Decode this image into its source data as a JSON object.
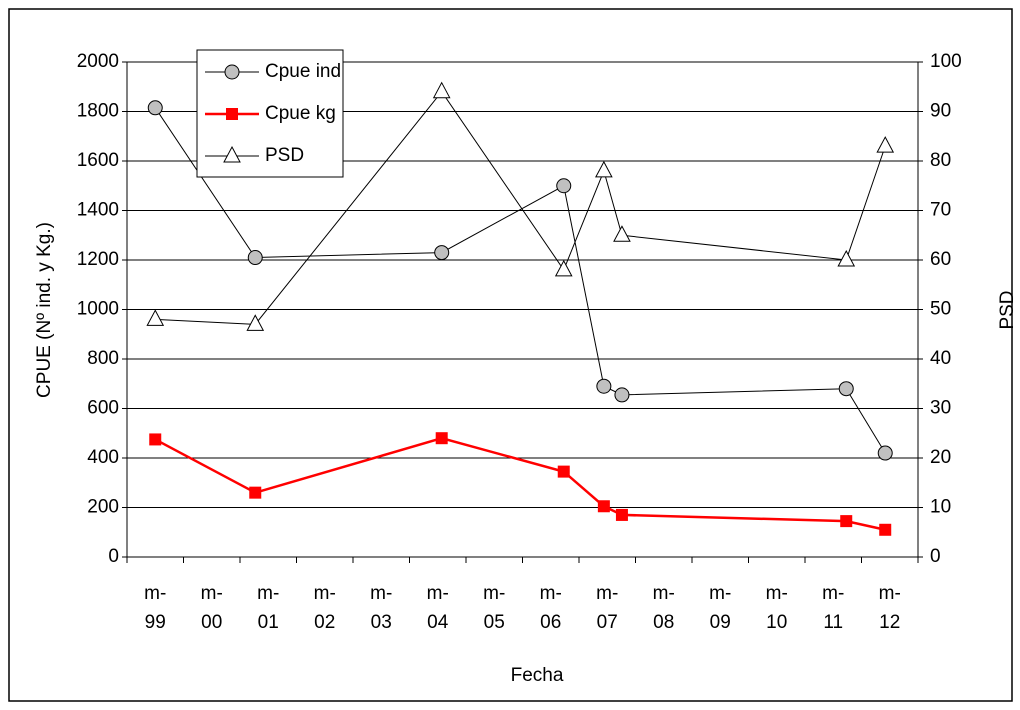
{
  "chart_data": {
    "type": "line",
    "y_label": "CPUE (Nº ind. y Kg.)",
    "y2_label": "PSD",
    "x_label": "Fecha",
    "x": [
      1999,
      2000.77,
      2004.07,
      2006.23,
      2006.94,
      2007.26,
      2011.23,
      2011.92
    ],
    "xlim": [
      1998.5,
      2012.5
    ],
    "xticks": [
      {
        "value": 1999,
        "label": "m-99"
      },
      {
        "value": 2000,
        "label": "m-00"
      },
      {
        "value": 2001,
        "label": "m-01"
      },
      {
        "value": 2002,
        "label": "m-02"
      },
      {
        "value": 2003,
        "label": "m-03"
      },
      {
        "value": 2004,
        "label": "m-04"
      },
      {
        "value": 2005,
        "label": "m-05"
      },
      {
        "value": 2006,
        "label": "m-06"
      },
      {
        "value": 2007,
        "label": "m-07"
      },
      {
        "value": 2008,
        "label": "m-08"
      },
      {
        "value": 2009,
        "label": "m-09"
      },
      {
        "value": 2010,
        "label": "m-10"
      },
      {
        "value": 2011,
        "label": "m-11"
      },
      {
        "value": 2012,
        "label": "m-12"
      }
    ],
    "ylim": [
      0,
      2000
    ],
    "yticks": [
      0,
      200,
      400,
      600,
      800,
      1000,
      1200,
      1400,
      1600,
      1800,
      2000
    ],
    "y2lim": [
      0,
      100
    ],
    "y2ticks": [
      0,
      10,
      20,
      30,
      40,
      50,
      60,
      70,
      80,
      90,
      100
    ],
    "grid": true,
    "legend": "top-left",
    "series": [
      {
        "name": "Cpue ind",
        "color": "#000000",
        "marker": "circle",
        "values": [
          1815,
          1210,
          1230,
          1500,
          690,
          655,
          680,
          420
        ]
      },
      {
        "name": "Cpue kg",
        "color": "#ff0000",
        "marker": "square",
        "values": [
          475,
          260,
          480,
          345,
          205,
          170,
          145,
          110
        ]
      },
      {
        "name": "PSD",
        "color": "#000000",
        "marker": "triangle",
        "axis": "y2",
        "values": [
          48,
          47,
          94,
          58,
          78,
          65,
          60,
          83
        ]
      }
    ]
  }
}
